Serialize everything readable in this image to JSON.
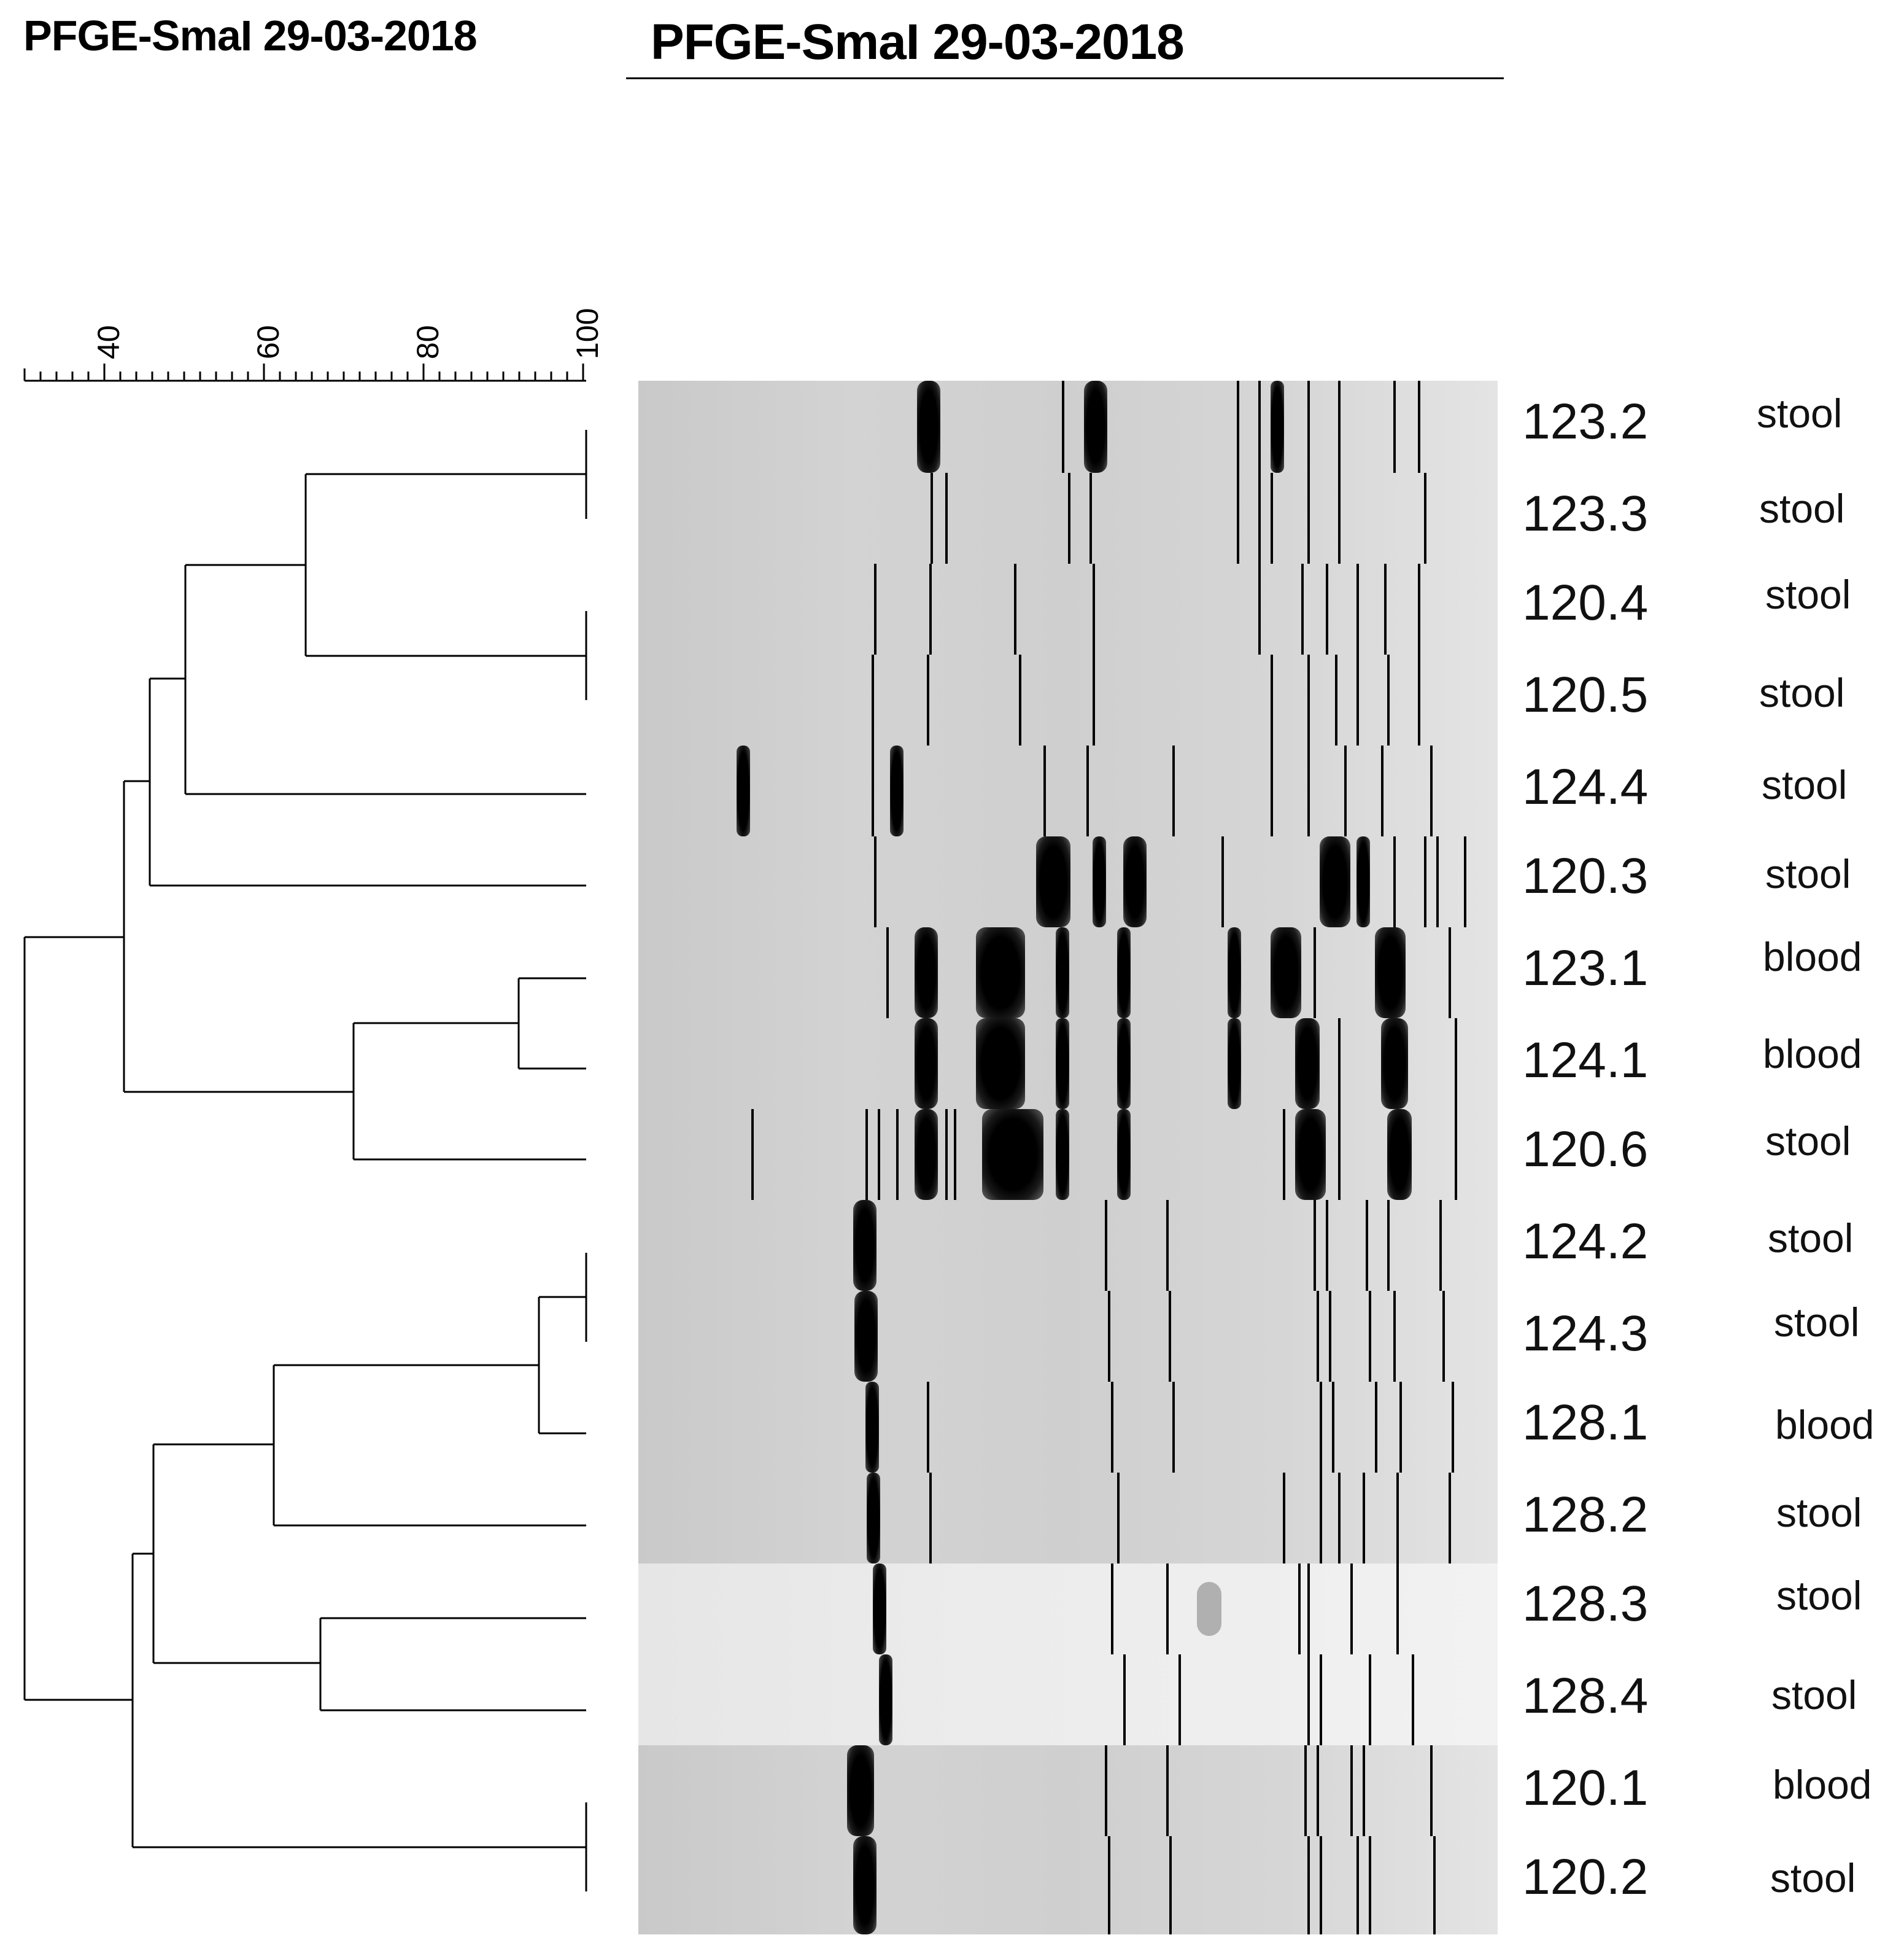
{
  "header": {
    "title_left": "PFGE-SmaI 29-03-2018",
    "title_main": "PFGE-SmaI 29-03-2018"
  },
  "scale": {
    "tick_labels": [
      "40",
      "60",
      "80",
      "100"
    ]
  },
  "samples": [
    {
      "id": "123.2",
      "source": "stool"
    },
    {
      "id": "123.3",
      "source": "stool"
    },
    {
      "id": "120.4",
      "source": "stool"
    },
    {
      "id": "120.5",
      "source": "stool"
    },
    {
      "id": "124.4",
      "source": "stool"
    },
    {
      "id": "120.3",
      "source": "stool"
    },
    {
      "id": "123.1",
      "source": "blood"
    },
    {
      "id": "124.1",
      "source": "blood"
    },
    {
      "id": "120.6",
      "source": "stool"
    },
    {
      "id": "124.2",
      "source": "stool"
    },
    {
      "id": "124.3",
      "source": "stool"
    },
    {
      "id": "128.1",
      "source": "blood"
    },
    {
      "id": "128.2",
      "source": "stool"
    },
    {
      "id": "128.3",
      "source": "stool"
    },
    {
      "id": "128.4",
      "source": "stool"
    },
    {
      "id": "120.1",
      "source": "blood"
    },
    {
      "id": "120.2",
      "source": "stool"
    }
  ]
}
